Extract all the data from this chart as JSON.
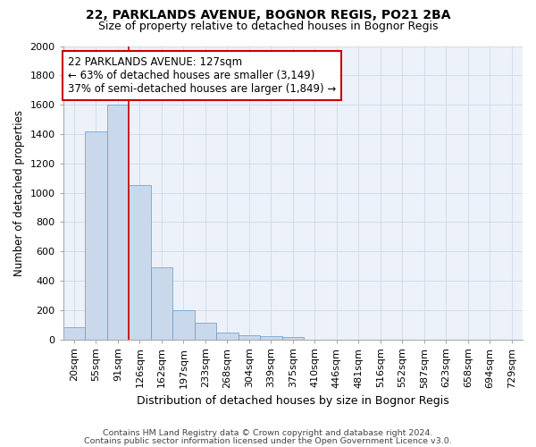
{
  "title1": "22, PARKLANDS AVENUE, BOGNOR REGIS, PO21 2BA",
  "title2": "Size of property relative to detached houses in Bognor Regis",
  "xlabel": "Distribution of detached houses by size in Bognor Regis",
  "ylabel": "Number of detached properties",
  "categories": [
    "20sqm",
    "55sqm",
    "91sqm",
    "126sqm",
    "162sqm",
    "197sqm",
    "233sqm",
    "268sqm",
    "304sqm",
    "339sqm",
    "375sqm",
    "410sqm",
    "446sqm",
    "481sqm",
    "516sqm",
    "552sqm",
    "587sqm",
    "623sqm",
    "658sqm",
    "694sqm",
    "729sqm"
  ],
  "values": [
    80,
    1420,
    1600,
    1050,
    490,
    200,
    110,
    45,
    25,
    20,
    15,
    0,
    0,
    0,
    0,
    0,
    0,
    0,
    0,
    0,
    0
  ],
  "bar_color": "#c9d9eb",
  "bar_edge_color": "#5b9bd5",
  "annotation_line1": "22 PARKLANDS AVENUE: 127sqm",
  "annotation_line2": "← 63% of detached houses are smaller (3,149)",
  "annotation_line3": "37% of semi-detached houses are larger (1,849) →",
  "annotation_box_color": "#ffffff",
  "annotation_box_edge_color": "#cc0000",
  "vline_color": "#cc0000",
  "grid_color": "#cdd8ea",
  "background_color": "#edf2fa",
  "footer1": "Contains HM Land Registry data © Crown copyright and database right 2024.",
  "footer2": "Contains public sector information licensed under the Open Government Licence v3.0.",
  "ylim": [
    0,
    2000
  ],
  "yticks": [
    0,
    200,
    400,
    600,
    800,
    1000,
    1200,
    1400,
    1600,
    1800,
    2000
  ],
  "vline_bar_index": 3,
  "figwidth": 6.0,
  "figheight": 5.0,
  "dpi": 100
}
